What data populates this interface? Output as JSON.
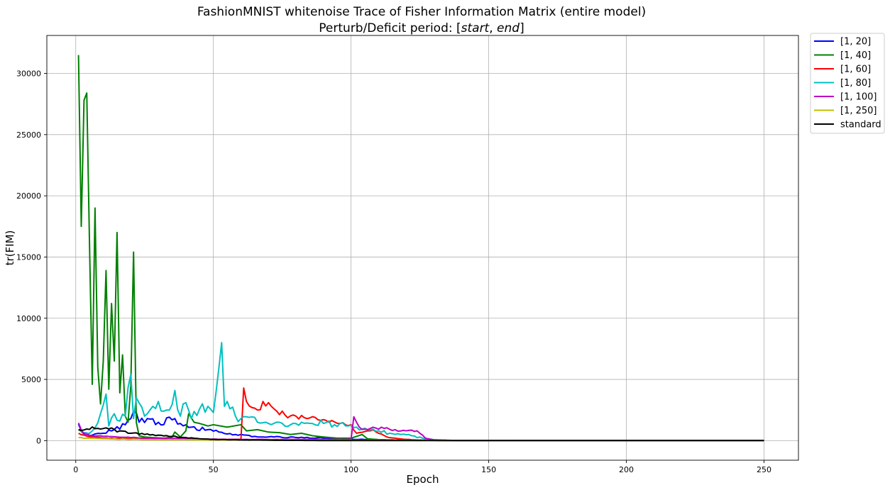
{
  "chart_data": {
    "type": "line",
    "title": "FashionMNIST whitenoise Trace of Fisher Information Matrix (entire model)",
    "subtitle_prefix": "Perturb/Deficit period: [",
    "subtitle_start": "start",
    "subtitle_sep": ", ",
    "subtitle_end": "end",
    "subtitle_suffix": "]",
    "xlabel": "Epoch",
    "ylabel": "tr(FIM)",
    "xlim": [
      -10.5,
      262.5
    ],
    "ylim": [
      -1600,
      33100
    ],
    "xticks": [
      0,
      50,
      100,
      150,
      200,
      250
    ],
    "yticks": [
      0,
      5000,
      10000,
      15000,
      20000,
      25000,
      30000
    ],
    "grid": true,
    "legend_position": "outside-top-right",
    "series": [
      {
        "name": "[1, 20]",
        "color": "#0000ff",
        "knots": [
          [
            1,
            1350
          ],
          [
            3,
            600
          ],
          [
            6,
            450
          ],
          [
            10,
            600
          ],
          [
            14,
            900
          ],
          [
            18,
            1300
          ],
          [
            20,
            1800
          ],
          [
            21,
            2400
          ],
          [
            23,
            1500
          ],
          [
            26,
            1800
          ],
          [
            30,
            1500
          ],
          [
            35,
            1700
          ],
          [
            38,
            1400
          ],
          [
            42,
            1100
          ],
          [
            48,
            900
          ],
          [
            52,
            700
          ],
          [
            58,
            500
          ],
          [
            65,
            350
          ],
          [
            72,
            300
          ],
          [
            80,
            250
          ],
          [
            90,
            200
          ],
          [
            100,
            120
          ],
          [
            110,
            80
          ],
          [
            120,
            40
          ],
          [
            130,
            20
          ],
          [
            140,
            10
          ],
          [
            250,
            5
          ]
        ],
        "noise": 0.18
      },
      {
        "name": "[1, 40]",
        "color": "#008000",
        "points": [
          [
            1,
            31500
          ],
          [
            2,
            17500
          ],
          [
            3,
            27800
          ],
          [
            4,
            28400
          ],
          [
            5,
            16000
          ],
          [
            6,
            4600
          ],
          [
            7,
            19000
          ],
          [
            8,
            6000
          ],
          [
            9,
            3000
          ],
          [
            10,
            6500
          ],
          [
            11,
            13900
          ],
          [
            12,
            4200
          ],
          [
            13,
            11200
          ],
          [
            14,
            6500
          ],
          [
            15,
            17000
          ],
          [
            16,
            3900
          ],
          [
            17,
            7000
          ],
          [
            18,
            2000
          ],
          [
            19,
            1500
          ],
          [
            20,
            4500
          ],
          [
            21,
            15400
          ],
          [
            22,
            1500
          ],
          [
            23,
            400
          ],
          [
            25,
            300
          ],
          [
            28,
            250
          ],
          [
            32,
            200
          ],
          [
            35,
            300
          ],
          [
            36,
            700
          ],
          [
            38,
            300
          ],
          [
            40,
            800
          ],
          [
            41,
            2200
          ],
          [
            43,
            1500
          ],
          [
            45,
            1400
          ],
          [
            48,
            1200
          ],
          [
            50,
            1300
          ],
          [
            55,
            1100
          ],
          [
            60,
            1300
          ],
          [
            62,
            800
          ],
          [
            66,
            900
          ],
          [
            70,
            700
          ],
          [
            74,
            650
          ],
          [
            78,
            500
          ],
          [
            82,
            600
          ],
          [
            86,
            400
          ],
          [
            90,
            300
          ],
          [
            95,
            200
          ],
          [
            100,
            200
          ],
          [
            104,
            500
          ],
          [
            106,
            150
          ],
          [
            110,
            80
          ],
          [
            120,
            40
          ],
          [
            130,
            20
          ],
          [
            140,
            10
          ],
          [
            250,
            5
          ]
        ],
        "noise": 0.0
      },
      {
        "name": "[1, 60]",
        "color": "#ff0000",
        "knots": [
          [
            1,
            600
          ],
          [
            5,
            300
          ],
          [
            10,
            200
          ],
          [
            20,
            150
          ],
          [
            30,
            120
          ],
          [
            40,
            100
          ],
          [
            50,
            100
          ],
          [
            60,
            100
          ],
          [
            61,
            4300
          ],
          [
            62,
            3200
          ],
          [
            64,
            2700
          ],
          [
            66,
            2500
          ],
          [
            68,
            3200
          ],
          [
            70,
            3100
          ],
          [
            72,
            2600
          ],
          [
            76,
            2100
          ],
          [
            80,
            2000
          ],
          [
            84,
            1800
          ],
          [
            88,
            1700
          ],
          [
            92,
            1500
          ],
          [
            96,
            1400
          ],
          [
            100,
            1300
          ],
          [
            102,
            600
          ],
          [
            106,
            800
          ],
          [
            108,
            900
          ],
          [
            110,
            600
          ],
          [
            113,
            300
          ],
          [
            116,
            200
          ],
          [
            120,
            100
          ],
          [
            125,
            50
          ],
          [
            130,
            20
          ],
          [
            140,
            10
          ],
          [
            250,
            5
          ]
        ],
        "noise": 0.12
      },
      {
        "name": "[1, 80]",
        "color": "#00bfbf",
        "knots": [
          [
            1,
            900
          ],
          [
            3,
            500
          ],
          [
            6,
            800
          ],
          [
            9,
            2200
          ],
          [
            11,
            3800
          ],
          [
            12,
            1200
          ],
          [
            14,
            2200
          ],
          [
            16,
            1600
          ],
          [
            18,
            2000
          ],
          [
            20,
            5400
          ],
          [
            21,
            1800
          ],
          [
            22,
            3500
          ],
          [
            25,
            2000
          ],
          [
            28,
            2800
          ],
          [
            30,
            3200
          ],
          [
            33,
            2500
          ],
          [
            36,
            4100
          ],
          [
            38,
            2000
          ],
          [
            40,
            3100
          ],
          [
            42,
            1800
          ],
          [
            45,
            2600
          ],
          [
            48,
            2800
          ],
          [
            50,
            2300
          ],
          [
            53,
            8000
          ],
          [
            54,
            2800
          ],
          [
            56,
            2600
          ],
          [
            58,
            2000
          ],
          [
            60,
            1800
          ],
          [
            63,
            1900
          ],
          [
            66,
            1500
          ],
          [
            70,
            1400
          ],
          [
            74,
            1500
          ],
          [
            78,
            1300
          ],
          [
            82,
            1500
          ],
          [
            86,
            1400
          ],
          [
            90,
            1400
          ],
          [
            94,
            1300
          ],
          [
            98,
            1200
          ],
          [
            102,
            1100
          ],
          [
            106,
            900
          ],
          [
            110,
            800
          ],
          [
            114,
            600
          ],
          [
            118,
            500
          ],
          [
            122,
            400
          ],
          [
            126,
            200
          ],
          [
            130,
            80
          ],
          [
            135,
            30
          ],
          [
            140,
            10
          ],
          [
            250,
            5
          ]
        ],
        "noise": 0.2
      },
      {
        "name": "[1, 100]",
        "color": "#bf00bf",
        "knots": [
          [
            1,
            1450
          ],
          [
            3,
            500
          ],
          [
            6,
            400
          ],
          [
            10,
            350
          ],
          [
            15,
            300
          ],
          [
            20,
            250
          ],
          [
            30,
            200
          ],
          [
            40,
            150
          ],
          [
            50,
            120
          ],
          [
            60,
            100
          ],
          [
            70,
            100
          ],
          [
            80,
            100
          ],
          [
            90,
            100
          ],
          [
            100,
            100
          ],
          [
            101,
            1950
          ],
          [
            103,
            1100
          ],
          [
            106,
            900
          ],
          [
            108,
            1100
          ],
          [
            112,
            1000
          ],
          [
            116,
            900
          ],
          [
            120,
            800
          ],
          [
            124,
            800
          ],
          [
            125,
            600
          ],
          [
            127,
            200
          ],
          [
            130,
            60
          ],
          [
            135,
            30
          ],
          [
            140,
            10
          ],
          [
            250,
            5
          ]
        ],
        "noise": 0.12
      },
      {
        "name": "[1, 250]",
        "color": "#bfbf00",
        "knots": [
          [
            1,
            250
          ],
          [
            5,
            200
          ],
          [
            10,
            150
          ],
          [
            20,
            100
          ],
          [
            30,
            80
          ],
          [
            50,
            60
          ],
          [
            80,
            40
          ],
          [
            120,
            20
          ],
          [
            160,
            10
          ],
          [
            250,
            5
          ]
        ],
        "noise": 0.2
      },
      {
        "name": "standard",
        "color": "#000000",
        "knots": [
          [
            1,
            900
          ],
          [
            4,
            950
          ],
          [
            8,
            1000
          ],
          [
            12,
            950
          ],
          [
            16,
            800
          ],
          [
            20,
            600
          ],
          [
            25,
            500
          ],
          [
            30,
            450
          ],
          [
            35,
            350
          ],
          [
            40,
            250
          ],
          [
            45,
            150
          ],
          [
            50,
            100
          ],
          [
            60,
            60
          ],
          [
            70,
            40
          ],
          [
            80,
            20
          ],
          [
            90,
            10
          ],
          [
            250,
            5
          ]
        ],
        "noise": 0.15
      }
    ]
  }
}
